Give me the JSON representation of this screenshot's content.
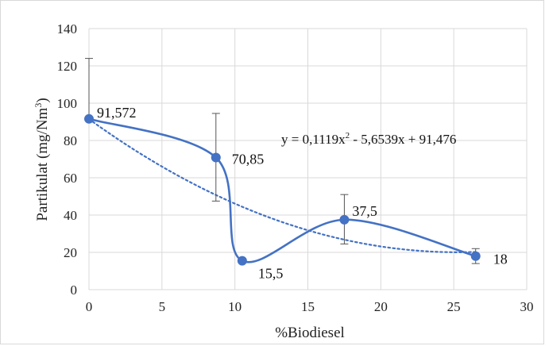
{
  "chart_data": {
    "type": "scatter",
    "title": "",
    "xlabel": "%Biodiesel",
    "ylabel_main": "Partikulat (mg/Nm",
    "ylabel_sup": "3",
    "ylabel_close": ")",
    "xlim": [
      0,
      30
    ],
    "ylim": [
      0,
      140
    ],
    "x_ticks": [
      0,
      5,
      10,
      15,
      20,
      25,
      30
    ],
    "y_ticks": [
      0,
      20,
      40,
      60,
      80,
      100,
      120,
      140
    ],
    "grid": true,
    "series": [
      {
        "points": [
          {
            "x": 0,
            "y": 91.572,
            "label": "91,572",
            "err_low": 91.572,
            "err_high": 124
          },
          {
            "x": 8.7,
            "y": 70.85,
            "label": "70,85",
            "err_low": 47.5,
            "err_high": 94.5
          },
          {
            "x": 10.5,
            "y": 15.5,
            "label": "15,5",
            "err_low": 14.5,
            "err_high": 16.5
          },
          {
            "x": 17.5,
            "y": 37.5,
            "label": "37,5",
            "err_low": 24.5,
            "err_high": 51
          },
          {
            "x": 26.5,
            "y": 18,
            "label": "18",
            "err_low": 14,
            "err_high": 22
          }
        ],
        "color": "#4472c4"
      }
    ],
    "trendline": {
      "type": "polynomial-2",
      "style": "dotted",
      "a": 0.1119,
      "b": -5.6539,
      "c": 91.476,
      "eq_text": "y = 0,1119x",
      "eq_sup": "2",
      "eq_rest": " - 5,6539x + 91,476"
    }
  }
}
